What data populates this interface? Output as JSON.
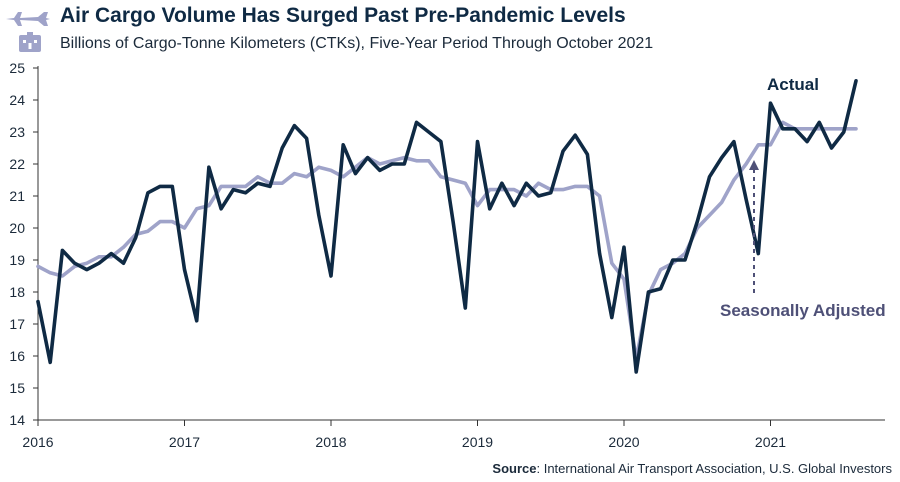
{
  "title": "Air Cargo Volume Has Surged Past Pre-Pandemic Levels",
  "subtitle": "Billions of Cargo-Tonne Kilometers (CTKs), Five-Year Period Through October 2021",
  "source_label": "Source",
  "source_text": ": International Air Transport Association, U.S. Global Investors",
  "icons": {
    "header_top": "airplane-icon",
    "header_bottom": "cargo-box-icon"
  },
  "colors": {
    "actual": "#0f2a44",
    "seasonally_adjusted": "#9fa3c9",
    "annotation": "#4e5077",
    "axis": "#333333"
  },
  "annotations": {
    "actual": "Actual",
    "seasonally_adjusted": "Seasonally Adjusted"
  },
  "chart_data": {
    "type": "line",
    "title": "",
    "xlabel": "",
    "ylabel": "",
    "x_ticks": [
      "2016",
      "2017",
      "2018",
      "2019",
      "2020",
      "2021"
    ],
    "ylim": [
      14,
      25
    ],
    "y_ticks": [
      14,
      15,
      16,
      17,
      18,
      19,
      20,
      21,
      22,
      23,
      24,
      25
    ],
    "grid": false,
    "x_start": "2016-01",
    "x_end": "2021-10",
    "series": [
      {
        "name": "Actual",
        "values": [
          17.7,
          15.8,
          19.3,
          18.9,
          18.7,
          18.9,
          19.2,
          18.9,
          19.7,
          21.1,
          21.3,
          21.3,
          18.7,
          17.1,
          21.9,
          20.6,
          21.2,
          21.1,
          21.4,
          21.3,
          22.5,
          23.2,
          22.8,
          20.4,
          18.5,
          22.6,
          21.7,
          22.2,
          21.8,
          22.0,
          22.0,
          23.3,
          23.0,
          22.7,
          20.2,
          17.5,
          22.7,
          20.6,
          21.4,
          20.7,
          21.4,
          21.0,
          21.1,
          22.4,
          22.9,
          22.3,
          19.2,
          17.2,
          19.4,
          15.5,
          18.0,
          18.1,
          19.0,
          19.0,
          20.2,
          21.6,
          22.2,
          22.7,
          20.9,
          19.2,
          23.9,
          23.1,
          23.1,
          22.7,
          23.3,
          22.5,
          23.0,
          24.6
        ]
      },
      {
        "name": "Seasonally Adjusted",
        "values": [
          18.8,
          18.6,
          18.5,
          18.8,
          18.9,
          19.1,
          19.1,
          19.4,
          19.8,
          19.9,
          20.2,
          20.2,
          20.0,
          20.6,
          20.7,
          21.3,
          21.3,
          21.3,
          21.6,
          21.4,
          21.4,
          21.7,
          21.6,
          21.9,
          21.8,
          21.6,
          21.9,
          22.2,
          22.0,
          22.1,
          22.2,
          22.1,
          22.1,
          21.6,
          21.5,
          21.4,
          20.7,
          21.2,
          21.2,
          21.2,
          21.0,
          21.4,
          21.2,
          21.2,
          21.3,
          21.3,
          21.0,
          18.9,
          18.4,
          15.9,
          17.9,
          18.7,
          18.9,
          19.2,
          20.0,
          20.4,
          20.8,
          21.5,
          22.0,
          22.6,
          22.6,
          23.3,
          23.1,
          23.1,
          23.1,
          23.1,
          23.1,
          23.1
        ]
      }
    ]
  }
}
